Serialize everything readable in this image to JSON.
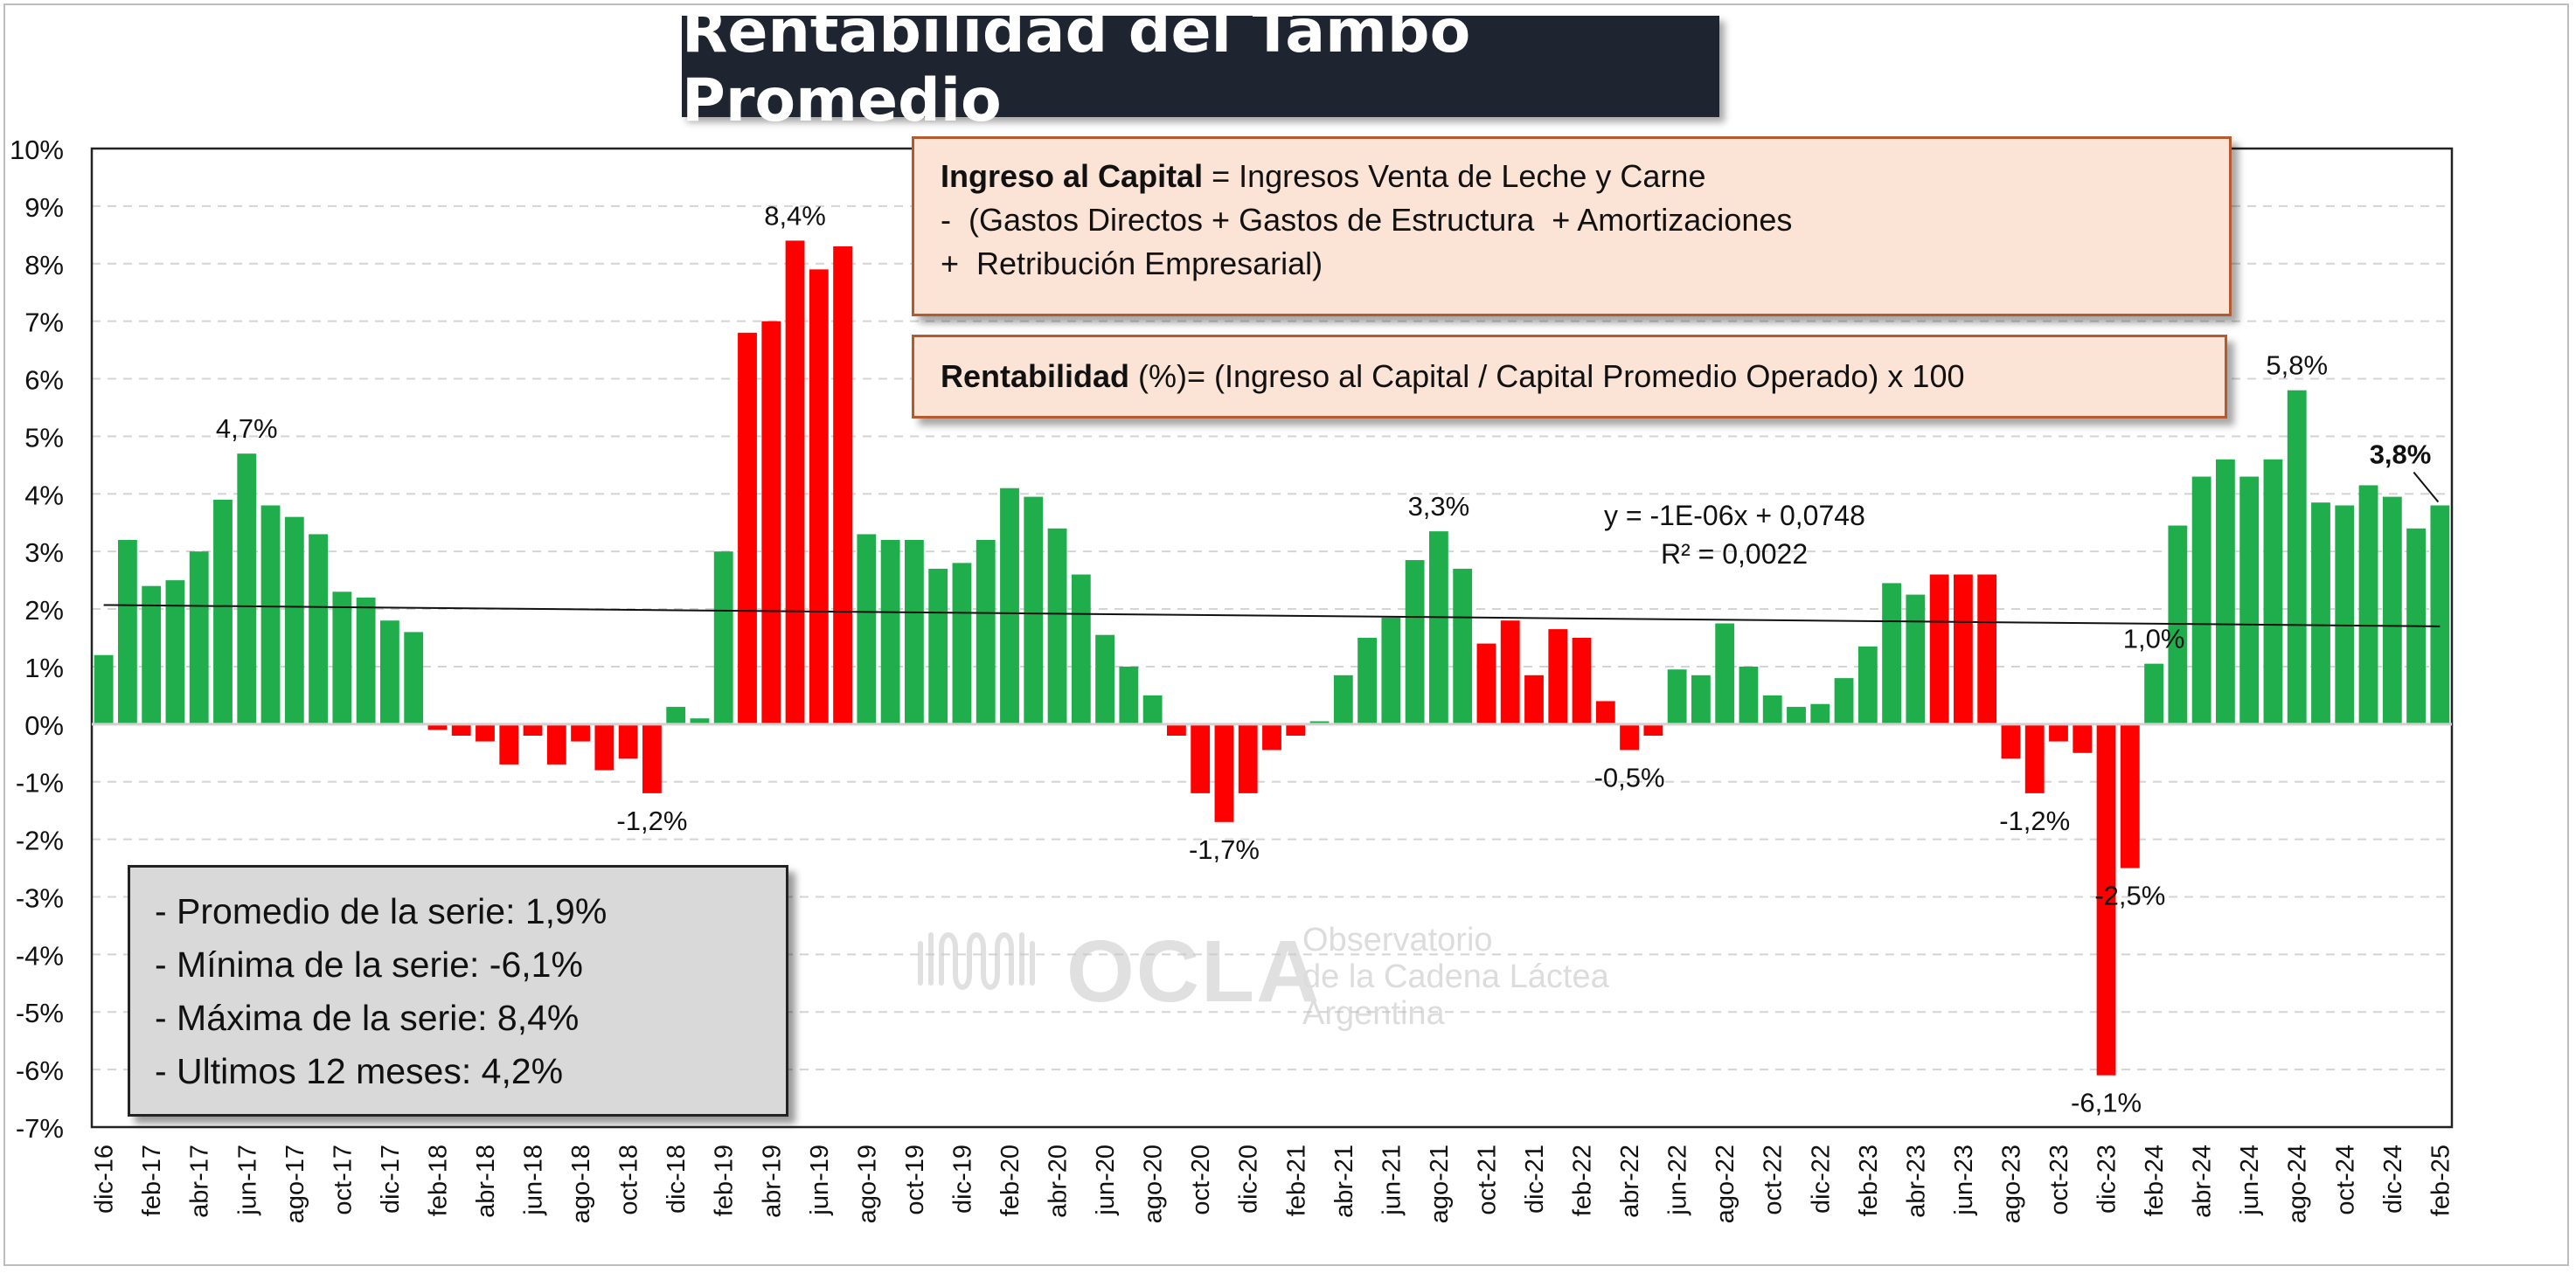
{
  "title": "Rentabilidad del Tambo Promedio",
  "formula_income": {
    "bold": "Ingreso al Capital",
    "line1_rest": " = Ingresos Venta de Leche y Carne",
    "line2": "-  (Gastos Directos + Gastos de Estructura  + Amortizaciones",
    "line3": "+  Retribución Empresarial)"
  },
  "formula_return": {
    "bold": "Rentabilidad",
    "rest": " (%)= (Ingreso al Capital / Capital Promedio Operado) x 100"
  },
  "stats": [
    "- Promedio de la serie: 1,9%",
    "- Mínima de la serie: -6,1%",
    "- Máxima de la serie: 8,4%",
    "- Ultimos 12 meses: 4,2%"
  ],
  "trendline": {
    "equation": "y = -1E-06x + 0,0748",
    "r2": "R² = 0,0022",
    "start_value": 2.07,
    "end_value": 1.7
  },
  "watermark": {
    "brand": "OCLA",
    "line1": "Observatorio",
    "line2": "de la Cadena Láctea",
    "line3": "Argentina"
  },
  "colors": {
    "positive": "#1fae4b",
    "highlight": "#ff0000",
    "title_bg": "#1e2430",
    "formula_bg": "#fbe3d6",
    "stats_bg": "#d9d9d9"
  },
  "chart_data": {
    "type": "bar",
    "title": "Rentabilidad del Tambo Promedio",
    "ylim": [
      -7,
      10
    ],
    "y_ticks": [
      "10%",
      "9%",
      "8%",
      "7%",
      "6%",
      "5%",
      "4%",
      "3%",
      "2%",
      "1%",
      "0%",
      "-1%",
      "-2%",
      "-3%",
      "-4%",
      "-5%",
      "-6%",
      "-7%"
    ],
    "grid": true,
    "x_tick_labels": [
      "dic-16",
      "feb-17",
      "abr-17",
      "jun-17",
      "ago-17",
      "oct-17",
      "dic-17",
      "feb-18",
      "abr-18",
      "jun-18",
      "ago-18",
      "oct-18",
      "dic-18",
      "feb-19",
      "abr-19",
      "jun-19",
      "ago-19",
      "oct-19",
      "dic-19",
      "feb-20",
      "abr-20",
      "jun-20",
      "ago-20",
      "oct-20",
      "dic-20",
      "feb-21",
      "abr-21",
      "jun-21",
      "ago-21",
      "oct-21",
      "dic-21",
      "feb-22",
      "abr-22",
      "jun-22",
      "ago-22",
      "oct-22",
      "dic-22",
      "feb-23",
      "abr-23",
      "jun-23",
      "ago-23",
      "oct-23",
      "dic-23",
      "feb-24",
      "abr-24",
      "jun-24",
      "ago-24",
      "oct-24",
      "dic-24",
      "feb-25"
    ],
    "values": [
      1.2,
      3.2,
      2.4,
      2.5,
      3.0,
      3.9,
      4.7,
      3.8,
      3.6,
      3.3,
      2.3,
      2.2,
      1.8,
      1.6,
      -0.1,
      -0.2,
      -0.3,
      -0.7,
      -0.2,
      -0.7,
      -0.3,
      -0.8,
      -0.6,
      -1.2,
      0.3,
      0.1,
      3.0,
      6.8,
      7.0,
      8.4,
      7.9,
      8.3,
      3.3,
      3.2,
      3.2,
      2.7,
      2.8,
      3.2,
      4.1,
      3.95,
      3.4,
      2.6,
      1.55,
      1.0,
      0.5,
      -0.2,
      -1.2,
      -1.7,
      -1.2,
      -0.45,
      -0.2,
      0.05,
      0.85,
      1.5,
      1.85,
      2.85,
      3.35,
      2.7,
      1.4,
      1.8,
      0.85,
      1.65,
      1.5,
      0.4,
      -0.45,
      -0.2,
      0.95,
      0.85,
      1.75,
      1.0,
      0.5,
      0.3,
      0.35,
      0.8,
      1.35,
      2.45,
      2.25,
      2.6,
      2.6,
      2.6,
      -0.6,
      -1.2,
      -0.3,
      -0.5,
      -6.1,
      -2.5,
      1.05,
      3.45,
      4.3,
      4.6,
      4.3,
      4.6,
      5.8,
      3.85,
      3.8,
      4.15,
      3.95,
      3.4,
      3.8
    ],
    "red_indices": [
      14,
      15,
      16,
      17,
      18,
      19,
      20,
      21,
      22,
      23,
      27,
      28,
      29,
      30,
      31,
      45,
      46,
      47,
      48,
      49,
      50,
      58,
      59,
      60,
      61,
      62,
      63,
      64,
      65,
      77,
      78,
      79,
      80,
      81,
      82,
      83,
      84,
      85
    ],
    "data_labels": [
      {
        "index": 6,
        "text": "4,7%"
      },
      {
        "index": 23,
        "text": "-1,2%"
      },
      {
        "index": 29,
        "text": "8,4%"
      },
      {
        "index": 47,
        "text": "-1,7%"
      },
      {
        "index": 56,
        "text": "3,3%"
      },
      {
        "index": 64,
        "text": "-0,5%"
      },
      {
        "index": 81,
        "text": "-1,2%"
      },
      {
        "index": 84,
        "text": "-6,1%"
      },
      {
        "index": 85,
        "text": "-2,5%"
      },
      {
        "index": 86,
        "text": "1,0%"
      },
      {
        "index": 92,
        "text": "5,8%"
      },
      {
        "index": 98,
        "text": "3,8%",
        "bold": true
      }
    ]
  }
}
